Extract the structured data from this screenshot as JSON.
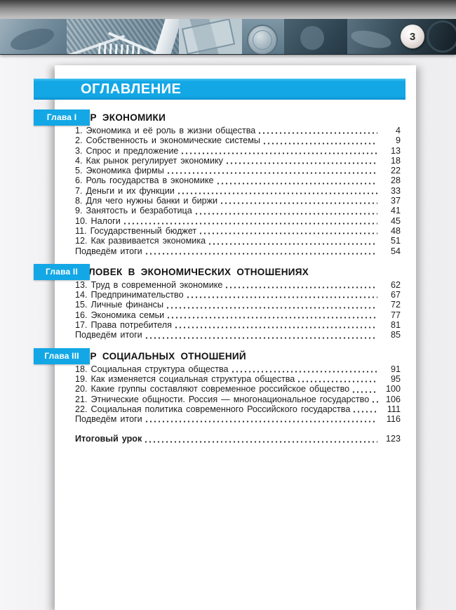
{
  "page_number": "3",
  "contents_header": {
    "title": "ОГЛАВЛЕНИЕ"
  },
  "toc": {
    "sections": [
      {
        "chapter_label": "Глава I",
        "title": "МИР ЭКОНОМИКИ",
        "items": [
          {
            "label": "1. Экономика и её роль в жизни общества",
            "page": "4"
          },
          {
            "label": "2. Собственность и экономические системы",
            "page": "9"
          },
          {
            "label": "3. Спрос и предложение",
            "page": "13"
          },
          {
            "label": "4. Как рынок регулирует экономику",
            "page": "18"
          },
          {
            "label": "5. Экономика фирмы",
            "page": "22"
          },
          {
            "label": "6. Роль государства в экономике",
            "page": "28"
          },
          {
            "label": "7. Деньги и их функции",
            "page": "33"
          },
          {
            "label": "8. Для чего нужны банки и биржи",
            "page": "37"
          },
          {
            "label": "9. Занятость и безработица",
            "page": "41"
          },
          {
            "label": "10. Налоги",
            "page": "45"
          },
          {
            "label": "11. Государственный бюджет",
            "page": "48"
          },
          {
            "label": "12. Как развивается экономика",
            "page": "51"
          },
          {
            "label": "Подведём итоги",
            "page": "54"
          }
        ]
      },
      {
        "chapter_label": "Глава II",
        "title": "ЧЕЛОВЕК В ЭКОНОМИЧЕСКИХ ОТНОШЕНИЯХ",
        "items": [
          {
            "label": "13. Труд в современной экономике",
            "page": "62"
          },
          {
            "label": "14. Предпринимательство",
            "page": "67"
          },
          {
            "label": "15. Личные финансы",
            "page": "72"
          },
          {
            "label": "16. Экономика семьи",
            "page": "77"
          },
          {
            "label": "17. Права потребителя",
            "page": "81"
          },
          {
            "label": "Подведём итоги",
            "page": "85"
          }
        ]
      },
      {
        "chapter_label": "Глава III",
        "title": "МИР СОЦИАЛЬНЫХ ОТНОШЕНИЙ",
        "items": [
          {
            "label": "18. Социальная структура общества",
            "page": "91"
          },
          {
            "label": "19. Как изменяется социальная структура общества",
            "page": "95"
          },
          {
            "label": "20. Какие группы составляют современное российское общество",
            "page": "100"
          },
          {
            "label": "21. Этнические общности. Россия — многонациональное государство",
            "page": "106"
          },
          {
            "label": "22. Социальная политика современного Российского государства",
            "page": "111"
          },
          {
            "label": "Подведём итоги",
            "page": "116"
          }
        ]
      }
    ],
    "final_item": {
      "label": "Итоговый урок",
      "page": "123"
    }
  },
  "colors": {
    "accent_blue": "#13a7e5",
    "page_bg": "#ffffff",
    "backdrop": "#efeef0"
  }
}
